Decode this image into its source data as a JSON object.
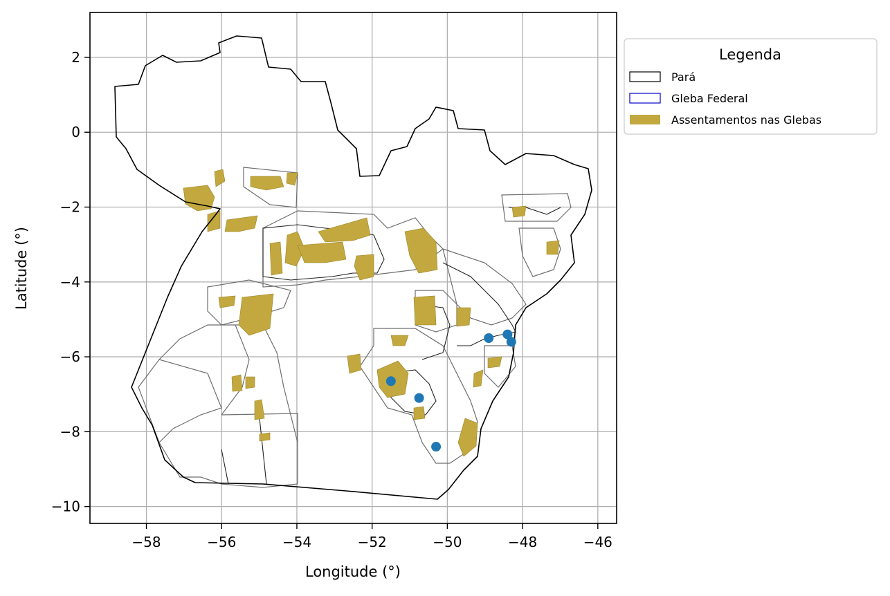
{
  "map": {
    "x_axis": {
      "label": "Longitude (°)",
      "range": [
        -59.5,
        -45.5
      ],
      "ticks": [
        -58,
        -56,
        -54,
        -52,
        -50,
        -48,
        -46
      ],
      "tick_labels": [
        "−58",
        "−56",
        "−54",
        "−52",
        "−50",
        "−48",
        "−46"
      ]
    },
    "y_axis": {
      "label": "Latitude (°)",
      "range": [
        -10.45,
        3.2
      ],
      "ticks": [
        2,
        0,
        -2,
        -4,
        -6,
        -8,
        -10
      ],
      "tick_labels": [
        "2",
        "0",
        "−2",
        "−4",
        "−6",
        "−8",
        "−10"
      ]
    },
    "grid": true,
    "legend": {
      "title": "Legenda",
      "placement": "outside-top-right",
      "items": [
        {
          "label": "Pará",
          "style": "outline",
          "color": "#000000"
        },
        {
          "label": "Gleba Federal",
          "style": "outline",
          "color": "#0000cc"
        },
        {
          "label": "Assentamentos nas Glebas",
          "style": "fill",
          "color": "#c2a83e"
        }
      ]
    },
    "colors": {
      "state_outline": "#000000",
      "gleba_outline": "#666666",
      "assentamento_fill": "#c2a83e",
      "points": "#1f77b4",
      "grid": "#b0b0b0"
    },
    "points": [
      {
        "lon": -51.5,
        "lat": -6.65
      },
      {
        "lon": -50.75,
        "lat": -7.1
      },
      {
        "lon": -50.3,
        "lat": -8.4
      },
      {
        "lon": -48.9,
        "lat": -5.5
      },
      {
        "lon": -48.4,
        "lat": -5.4
      },
      {
        "lon": -48.3,
        "lat": -5.6
      }
    ]
  }
}
